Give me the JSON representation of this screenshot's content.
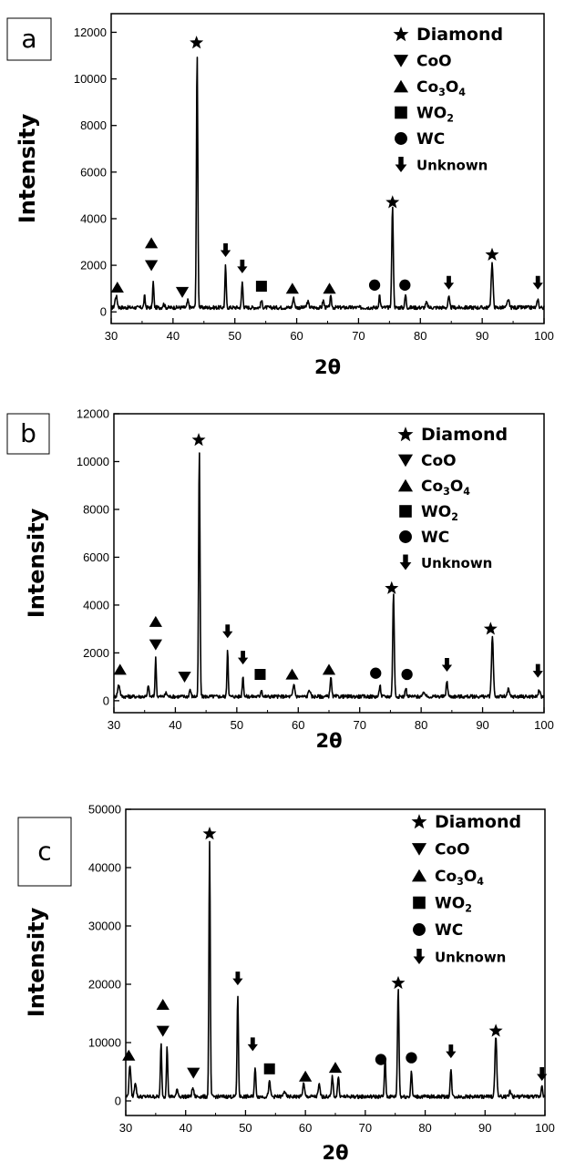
{
  "chart_data": [
    {
      "panel": "a",
      "type": "line",
      "xlabel": "2θ",
      "ylabel": "Intensity",
      "xlim": [
        30,
        100
      ],
      "ylim": [
        -500,
        12800
      ],
      "xticks": [
        30,
        40,
        50,
        60,
        70,
        80,
        90,
        100
      ],
      "yticks": [
        0,
        2000,
        4000,
        6000,
        8000,
        10000,
        12000
      ],
      "legend": {
        "placement": "top-right",
        "entries": [
          {
            "marker": "star",
            "text": "Diamond"
          },
          {
            "marker": "triangle-down",
            "text": "CoO"
          },
          {
            "marker": "triangle-up",
            "text": "Co3O4"
          },
          {
            "marker": "square",
            "text": "WO2"
          },
          {
            "marker": "circle",
            "text": "WC"
          },
          {
            "marker": "arrow-down",
            "text": "Unknown"
          }
        ]
      },
      "peaks": [
        {
          "x": 30.8,
          "y": 500,
          "w": 0.35
        },
        {
          "x": 35.4,
          "y": 500,
          "w": 0.2
        },
        {
          "x": 36.8,
          "y": 1100,
          "w": 0.2
        },
        {
          "x": 38.5,
          "y": 150,
          "w": 0.3
        },
        {
          "x": 42.4,
          "y": 300,
          "w": 0.25
        },
        {
          "x": 43.9,
          "y": 10900,
          "w": 0.22
        },
        {
          "x": 48.5,
          "y": 1800,
          "w": 0.2
        },
        {
          "x": 51.2,
          "y": 1100,
          "w": 0.22
        },
        {
          "x": 54.3,
          "y": 300,
          "w": 0.25
        },
        {
          "x": 59.5,
          "y": 400,
          "w": 0.3
        },
        {
          "x": 61.8,
          "y": 250,
          "w": 0.3
        },
        {
          "x": 64.3,
          "y": 300,
          "w": 0.25
        },
        {
          "x": 65.5,
          "y": 450,
          "w": 0.25
        },
        {
          "x": 73.4,
          "y": 550,
          "w": 0.22
        },
        {
          "x": 75.5,
          "y": 4300,
          "w": 0.25
        },
        {
          "x": 77.6,
          "y": 550,
          "w": 0.22
        },
        {
          "x": 81.0,
          "y": 200,
          "w": 0.3
        },
        {
          "x": 84.6,
          "y": 450,
          "w": 0.25
        },
        {
          "x": 91.6,
          "y": 1900,
          "w": 0.3
        },
        {
          "x": 94.2,
          "y": 350,
          "w": 0.3
        },
        {
          "x": 99.0,
          "y": 350,
          "w": 0.25
        }
      ],
      "markers": [
        {
          "type": "triangle-up",
          "x": 31.0,
          "y": 1050
        },
        {
          "type": "triangle-up",
          "x": 36.5,
          "y": 2950
        },
        {
          "type": "triangle-down",
          "x": 36.5,
          "y": 2000
        },
        {
          "type": "triangle-down",
          "x": 41.5,
          "y": 850
        },
        {
          "type": "star",
          "x": 43.8,
          "y": 11550
        },
        {
          "type": "arrow-down",
          "x": 48.5,
          "y": 2650
        },
        {
          "type": "arrow-down",
          "x": 51.2,
          "y": 1950
        },
        {
          "type": "square",
          "x": 54.3,
          "y": 1100
        },
        {
          "type": "triangle-up",
          "x": 59.3,
          "y": 1000
        },
        {
          "type": "triangle-up",
          "x": 65.3,
          "y": 1000
        },
        {
          "type": "circle",
          "x": 72.6,
          "y": 1150
        },
        {
          "type": "star",
          "x": 75.5,
          "y": 4700
        },
        {
          "type": "circle",
          "x": 77.5,
          "y": 1150
        },
        {
          "type": "arrow-down",
          "x": 84.6,
          "y": 1250
        },
        {
          "type": "star",
          "x": 91.6,
          "y": 2450
        },
        {
          "type": "arrow-down",
          "x": 99.0,
          "y": 1250
        }
      ]
    },
    {
      "panel": "b",
      "type": "line",
      "xlabel": "2θ",
      "ylabel": "Intensity",
      "xlim": [
        30,
        100
      ],
      "ylim": [
        -500,
        12000
      ],
      "xticks": [
        30,
        40,
        50,
        60,
        70,
        80,
        90,
        100
      ],
      "yticks": [
        0,
        2000,
        4000,
        6000,
        8000,
        10000,
        12000
      ],
      "legend": {
        "placement": "top-right",
        "entries": [
          {
            "marker": "star",
            "text": "Diamond"
          },
          {
            "marker": "triangle-down",
            "text": "CoO"
          },
          {
            "marker": "triangle-up",
            "text": "Co3O4"
          },
          {
            "marker": "square",
            "text": "WO2"
          },
          {
            "marker": "circle",
            "text": "WC"
          },
          {
            "marker": "arrow-down",
            "text": "Unknown"
          }
        ]
      },
      "peaks": [
        {
          "x": 30.8,
          "y": 500,
          "w": 0.35
        },
        {
          "x": 35.6,
          "y": 500,
          "w": 0.2
        },
        {
          "x": 36.8,
          "y": 1600,
          "w": 0.2
        },
        {
          "x": 38.5,
          "y": 150,
          "w": 0.3
        },
        {
          "x": 42.4,
          "y": 300,
          "w": 0.25
        },
        {
          "x": 43.9,
          "y": 10300,
          "w": 0.22
        },
        {
          "x": 48.5,
          "y": 2000,
          "w": 0.2
        },
        {
          "x": 51.0,
          "y": 850,
          "w": 0.22
        },
        {
          "x": 54.0,
          "y": 300,
          "w": 0.25
        },
        {
          "x": 59.3,
          "y": 500,
          "w": 0.3
        },
        {
          "x": 61.8,
          "y": 300,
          "w": 0.3
        },
        {
          "x": 65.3,
          "y": 800,
          "w": 0.25
        },
        {
          "x": 73.3,
          "y": 500,
          "w": 0.22
        },
        {
          "x": 75.5,
          "y": 4300,
          "w": 0.25
        },
        {
          "x": 77.5,
          "y": 400,
          "w": 0.22
        },
        {
          "x": 80.5,
          "y": 200,
          "w": 0.3
        },
        {
          "x": 84.2,
          "y": 650,
          "w": 0.25
        },
        {
          "x": 91.6,
          "y": 2500,
          "w": 0.3
        },
        {
          "x": 94.2,
          "y": 300,
          "w": 0.3
        },
        {
          "x": 99.2,
          "y": 300,
          "w": 0.25
        }
      ],
      "markers": [
        {
          "type": "triangle-up",
          "x": 31.0,
          "y": 1300
        },
        {
          "type": "triangle-up",
          "x": 36.8,
          "y": 3300
        },
        {
          "type": "triangle-down",
          "x": 36.8,
          "y": 2350
        },
        {
          "type": "triangle-down",
          "x": 41.5,
          "y": 1000
        },
        {
          "type": "star",
          "x": 43.8,
          "y": 10900
        },
        {
          "type": "arrow-down",
          "x": 48.5,
          "y": 2900
        },
        {
          "type": "arrow-down",
          "x": 51.0,
          "y": 1800
        },
        {
          "type": "square",
          "x": 53.8,
          "y": 1100
        },
        {
          "type": "triangle-up",
          "x": 59.0,
          "y": 1100
        },
        {
          "type": "triangle-up",
          "x": 65.0,
          "y": 1300
        },
        {
          "type": "circle",
          "x": 72.6,
          "y": 1150
        },
        {
          "type": "star",
          "x": 75.2,
          "y": 4700
        },
        {
          "type": "circle",
          "x": 77.7,
          "y": 1100
        },
        {
          "type": "arrow-down",
          "x": 84.2,
          "y": 1500
        },
        {
          "type": "star",
          "x": 91.3,
          "y": 3000
        },
        {
          "type": "arrow-down",
          "x": 99.0,
          "y": 1250
        }
      ]
    },
    {
      "panel": "c",
      "type": "line",
      "xlabel": "2θ",
      "ylabel": "Intensity",
      "xlim": [
        30,
        100
      ],
      "ylim": [
        -2500,
        50000
      ],
      "xticks": [
        30,
        40,
        50,
        60,
        70,
        80,
        90,
        100
      ],
      "yticks": [
        0,
        10000,
        20000,
        30000,
        40000,
        50000
      ],
      "legend": {
        "placement": "top-right",
        "entries": [
          {
            "marker": "star",
            "text": "Diamond"
          },
          {
            "marker": "triangle-down",
            "text": "CoO"
          },
          {
            "marker": "triangle-up",
            "text": "Co3O4"
          },
          {
            "marker": "square",
            "text": "WO2"
          },
          {
            "marker": "circle",
            "text": "WC"
          },
          {
            "marker": "arrow-down",
            "text": "Unknown"
          }
        ]
      },
      "peaks": [
        {
          "x": 30.7,
          "y": 5500,
          "w": 0.3
        },
        {
          "x": 31.6,
          "y": 2500,
          "w": 0.3
        },
        {
          "x": 35.9,
          "y": 9000,
          "w": 0.22
        },
        {
          "x": 36.9,
          "y": 8500,
          "w": 0.22
        },
        {
          "x": 38.6,
          "y": 1200,
          "w": 0.3
        },
        {
          "x": 41.2,
          "y": 1500,
          "w": 0.3
        },
        {
          "x": 44.0,
          "y": 43500,
          "w": 0.22
        },
        {
          "x": 48.7,
          "y": 17500,
          "w": 0.22
        },
        {
          "x": 51.6,
          "y": 4800,
          "w": 0.25
        },
        {
          "x": 54.0,
          "y": 2500,
          "w": 0.3
        },
        {
          "x": 56.5,
          "y": 1000,
          "w": 0.3
        },
        {
          "x": 59.7,
          "y": 2200,
          "w": 0.3
        },
        {
          "x": 62.3,
          "y": 2000,
          "w": 0.3
        },
        {
          "x": 64.5,
          "y": 3500,
          "w": 0.25
        },
        {
          "x": 65.5,
          "y": 3500,
          "w": 0.25
        },
        {
          "x": 73.3,
          "y": 7000,
          "w": 0.22
        },
        {
          "x": 75.5,
          "y": 18500,
          "w": 0.25
        },
        {
          "x": 77.7,
          "y": 4500,
          "w": 0.22
        },
        {
          "x": 84.3,
          "y": 4500,
          "w": 0.25
        },
        {
          "x": 91.8,
          "y": 10500,
          "w": 0.3
        },
        {
          "x": 94.2,
          "y": 1000,
          "w": 0.3
        },
        {
          "x": 99.5,
          "y": 2000,
          "w": 0.25
        }
      ],
      "markers": [
        {
          "type": "triangle-up",
          "x": 30.5,
          "y": 7800
        },
        {
          "type": "triangle-up",
          "x": 36.2,
          "y": 16500
        },
        {
          "type": "triangle-down",
          "x": 36.2,
          "y": 12000
        },
        {
          "type": "triangle-down",
          "x": 41.3,
          "y": 4800
        },
        {
          "type": "star",
          "x": 44.0,
          "y": 45800
        },
        {
          "type": "arrow-down",
          "x": 48.7,
          "y": 21000
        },
        {
          "type": "arrow-down",
          "x": 51.2,
          "y": 9700
        },
        {
          "type": "square",
          "x": 54.0,
          "y": 5500
        },
        {
          "type": "triangle-up",
          "x": 60.0,
          "y": 4200
        },
        {
          "type": "triangle-up",
          "x": 65.0,
          "y": 5700
        },
        {
          "type": "circle",
          "x": 72.6,
          "y": 7100
        },
        {
          "type": "star",
          "x": 75.5,
          "y": 20200
        },
        {
          "type": "circle",
          "x": 77.7,
          "y": 7400
        },
        {
          "type": "arrow-down",
          "x": 84.3,
          "y": 8500
        },
        {
          "type": "star",
          "x": 91.8,
          "y": 12000
        },
        {
          "type": "arrow-down",
          "x": 99.5,
          "y": 4600
        }
      ]
    }
  ]
}
